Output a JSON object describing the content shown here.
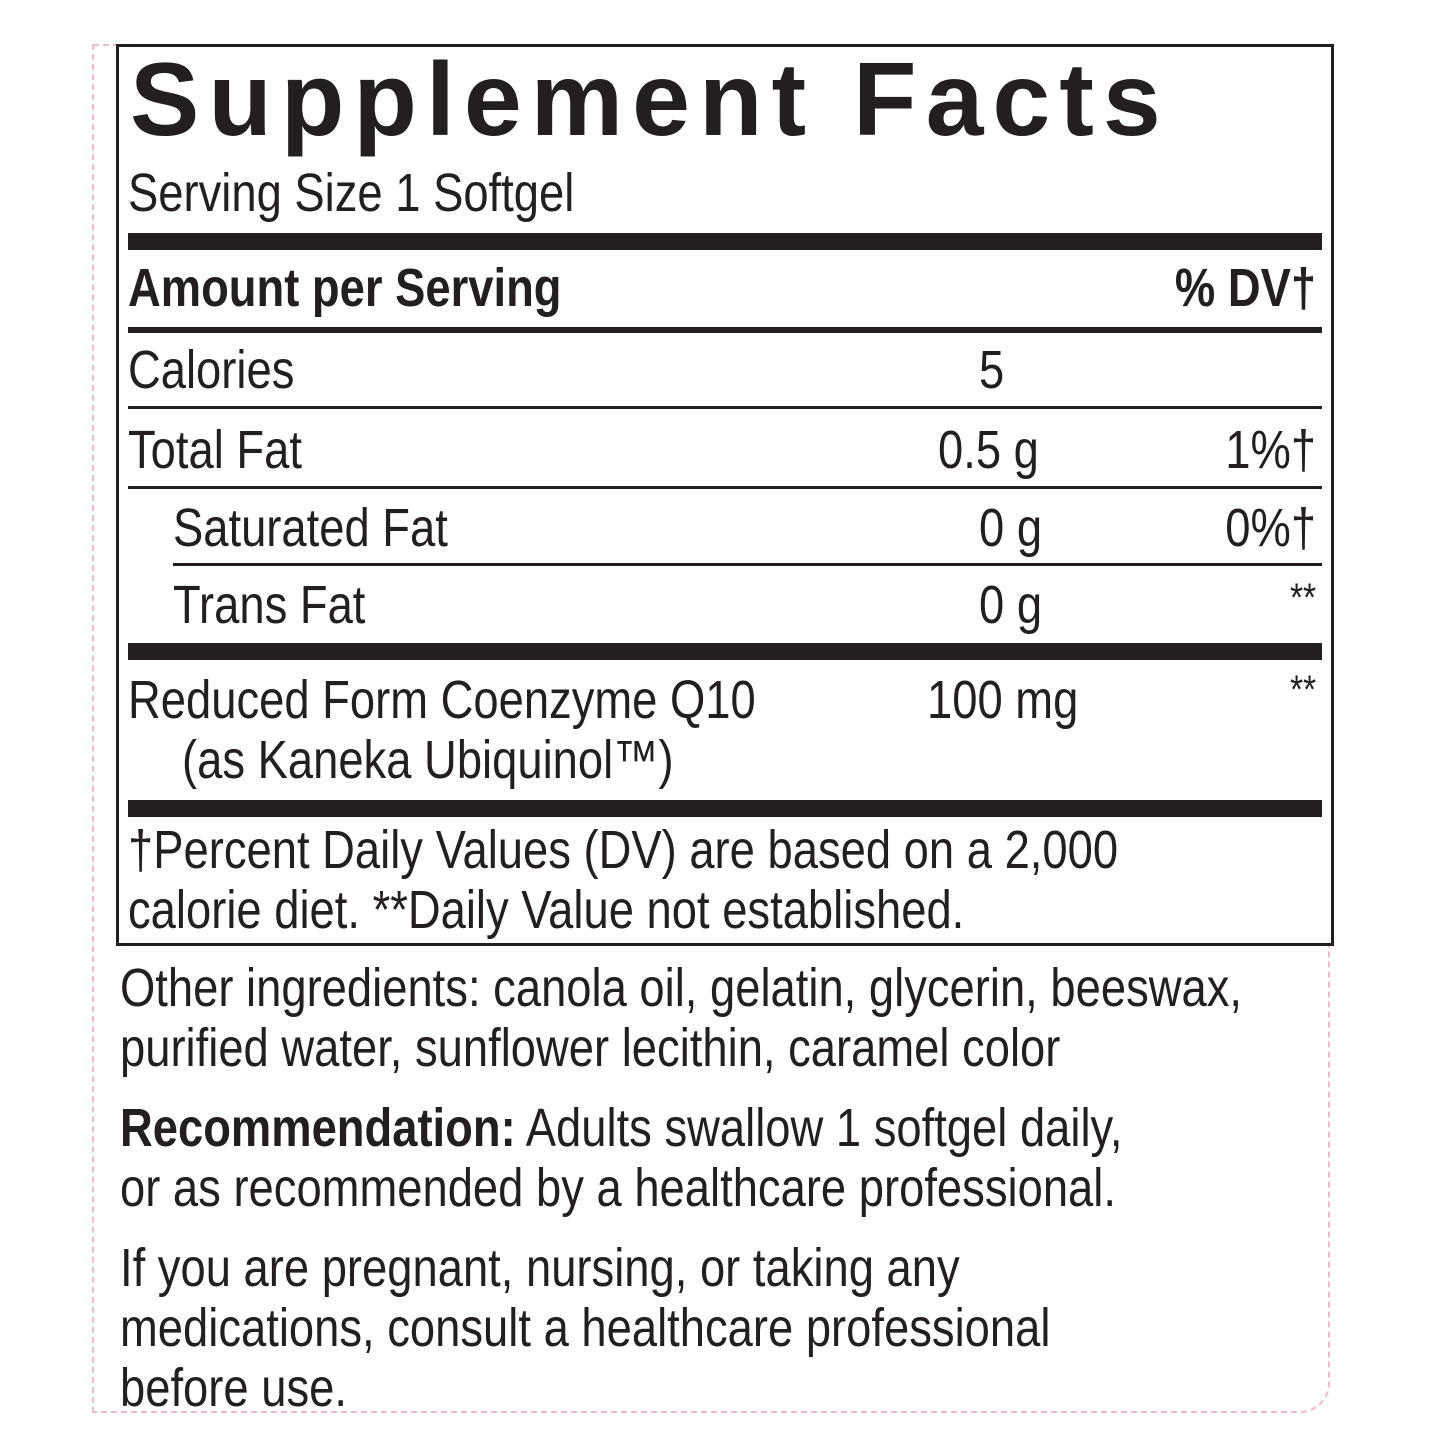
{
  "title": "Supplement Facts",
  "serving_size": "Serving Size 1 Softgel",
  "header": {
    "amount": "Amount per Serving",
    "dv": "% DV†"
  },
  "rows": [
    {
      "name": "Calories",
      "amount": "5",
      "dv": ""
    },
    {
      "name": "Total Fat",
      "amount": "0.5 g",
      "dv": "1%†"
    },
    {
      "name": "Saturated Fat",
      "amount": "0 g",
      "dv": "0%†"
    },
    {
      "name": "Trans Fat",
      "amount": "0 g",
      "dv": "**"
    },
    {
      "name": "Reduced Form Coenzyme Q10",
      "sub": "(as Kaneka Ubiquinol™)",
      "amount": "100 mg",
      "dv": "**"
    }
  ],
  "footnote": [
    "†Percent Daily Values (DV) are based on a 2,000",
    "calorie diet. **Daily Value not established."
  ],
  "other_ingredients": [
    "Other ingredients: canola oil, gelatin, glycerin, beeswax,",
    "purified water, sunflower lecithin, caramel color"
  ],
  "recommendation": {
    "label": "Recommendation:",
    "lines": [
      " Adults swallow 1 softgel daily,",
      "or as recommended by a healthcare professional."
    ]
  },
  "warning": [
    "If you are pregnant, nursing, or taking any",
    "medications, consult a healthcare professional",
    "before use."
  ]
}
